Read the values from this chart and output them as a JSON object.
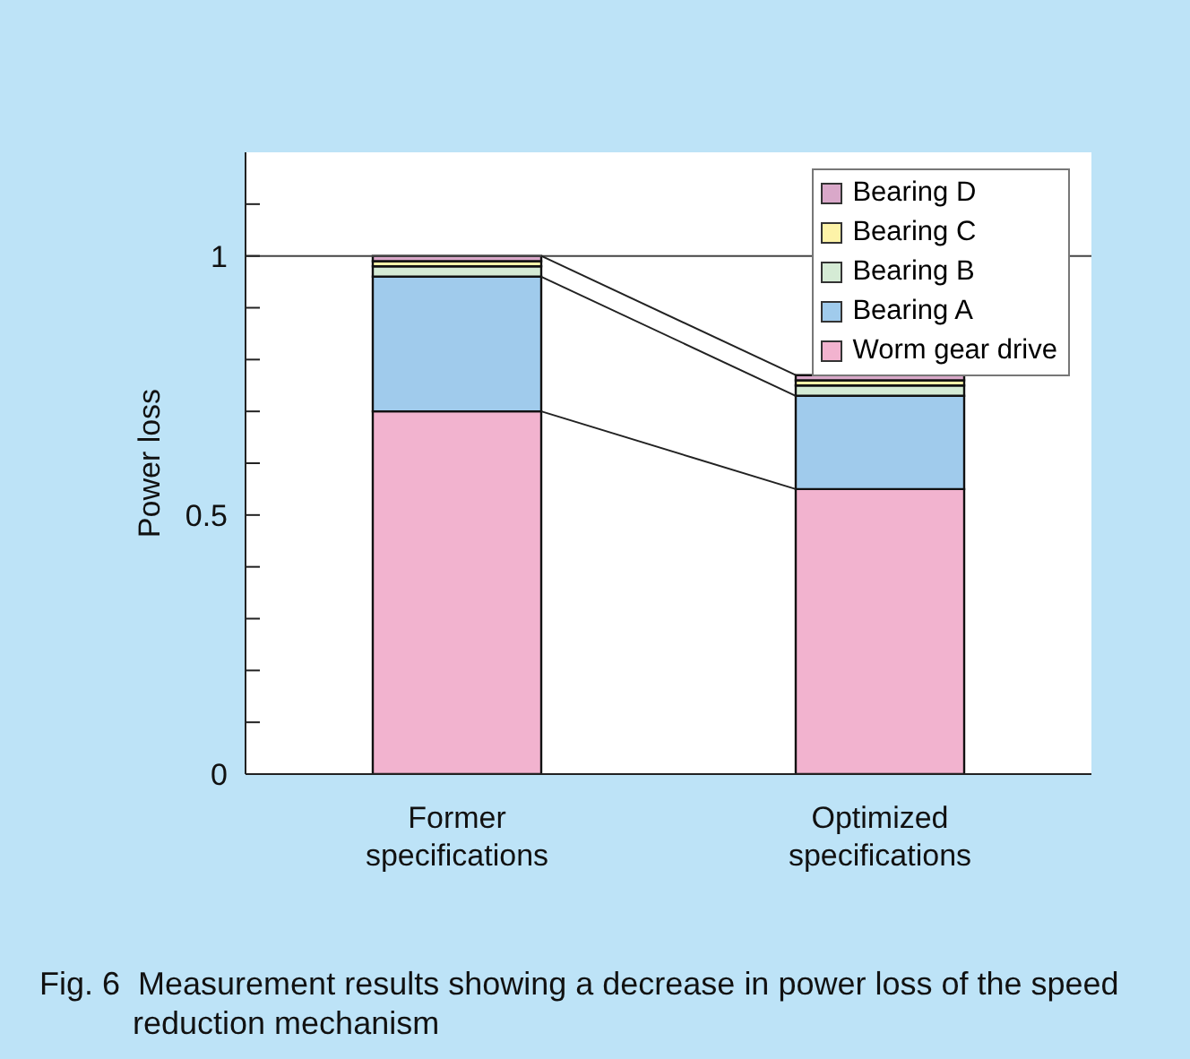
{
  "chart_data": {
    "type": "bar",
    "stacked": true,
    "ylabel": "Power loss",
    "categories": [
      "Former specifications",
      "Optimized specifications"
    ],
    "series": [
      {
        "name": "Worm gear drive",
        "color": "#f2b3cf",
        "values": [
          0.7,
          0.55
        ]
      },
      {
        "name": "Bearing A",
        "color": "#a0cbec",
        "values": [
          0.26,
          0.18
        ]
      },
      {
        "name": "Bearing B",
        "color": "#d5ebd5",
        "values": [
          0.02,
          0.02
        ]
      },
      {
        "name": "Bearing C",
        "color": "#fdf3a8",
        "values": [
          0.01,
          0.01
        ]
      },
      {
        "name": "Bearing D",
        "color": "#d9a8c9",
        "values": [
          0.01,
          0.01
        ]
      }
    ],
    "ylim": [
      0,
      1.2
    ],
    "yticks": [
      0,
      {
        "value": 0.1,
        "label": null
      },
      {
        "value": 0.2,
        "label": null
      },
      {
        "value": 0.3,
        "label": null
      },
      {
        "value": 0.4,
        "label": null
      },
      0.5,
      {
        "value": 0.6,
        "label": null
      },
      {
        "value": 0.7,
        "label": null
      },
      {
        "value": 0.8,
        "label": null
      },
      {
        "value": 0.9,
        "label": null
      },
      1,
      {
        "value": 1.1,
        "label": null
      }
    ],
    "ref_lines": [
      {
        "axis": "y",
        "value": 1
      }
    ],
    "legend": "top right",
    "grid": false,
    "annotations": [
      "Fig. 6  Measurement results showing a decrease in power loss of the speed reduction mechanism"
    ]
  }
}
